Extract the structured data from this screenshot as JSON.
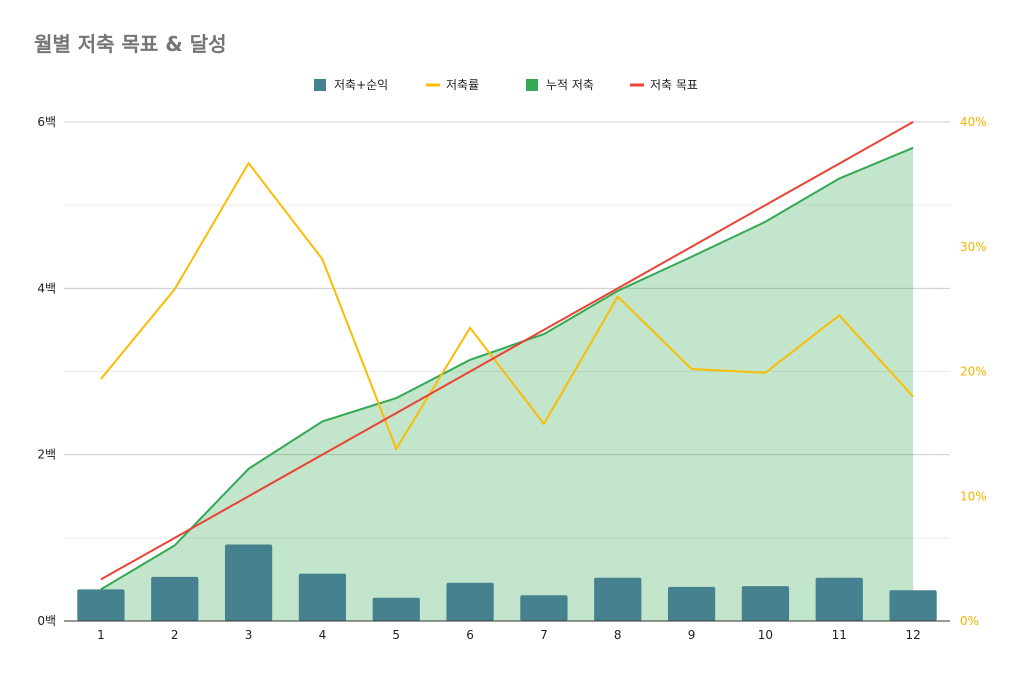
{
  "title": "월별 저축 목표 & 달성",
  "chart_data": {
    "type": "bar",
    "title": "월별 저축 목표 & 달성",
    "categories": [
      "1",
      "2",
      "3",
      "4",
      "5",
      "6",
      "7",
      "8",
      "9",
      "10",
      "11",
      "12"
    ],
    "y_left": {
      "ylim": [
        0,
        600
      ],
      "ticks": [
        0,
        200,
        400,
        600
      ],
      "tick_labels": [
        "0백",
        "2백",
        "4백",
        "6백"
      ]
    },
    "y_right": {
      "ylim": [
        0,
        40
      ],
      "ticks": [
        0,
        10,
        20,
        30,
        40
      ],
      "tick_labels": [
        "0%",
        "10%",
        "20%",
        "30%",
        "40%"
      ]
    },
    "grid": true,
    "legend_position": "top",
    "series": [
      {
        "name": "저축+순익",
        "type": "bar",
        "axis": "left",
        "color": "#45818e",
        "values": [
          38,
          53,
          92,
          57,
          28,
          46,
          31,
          52,
          41,
          42,
          52,
          37
        ]
      },
      {
        "name": "저축률",
        "type": "line",
        "axis": "right",
        "color": "#fbbc04",
        "values": [
          19.4,
          26.6,
          36.7,
          29.0,
          13.8,
          23.5,
          15.8,
          26.0,
          20.2,
          19.9,
          24.5,
          18.0
        ]
      },
      {
        "name": "누적 저축",
        "type": "area",
        "axis": "left",
        "color": "#34a853",
        "values": [
          38,
          91,
          183,
          240,
          268,
          314,
          345,
          397,
          438,
          480,
          532,
          569
        ]
      },
      {
        "name": "저축 목표",
        "type": "line",
        "axis": "left",
        "color": "#ea4335",
        "values": [
          50,
          100,
          150,
          200,
          250,
          300,
          350,
          400,
          450,
          500,
          550,
          600
        ]
      }
    ]
  }
}
